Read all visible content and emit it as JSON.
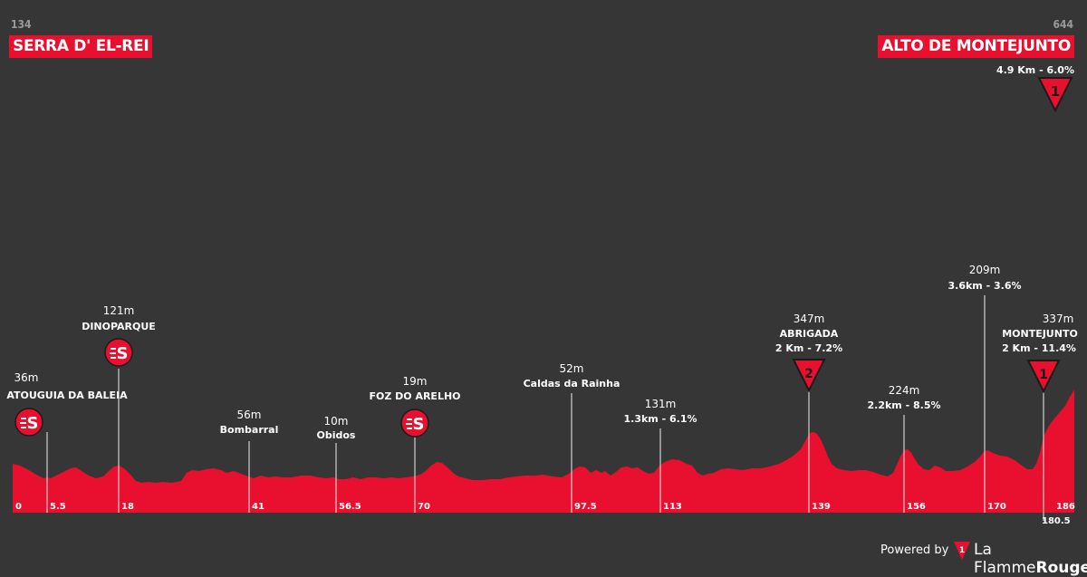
{
  "start": {
    "elevation": "134",
    "name": "SERRA D' EL-REI"
  },
  "finish": {
    "elevation": "644",
    "name": "ALTO DE MONTEJUNTO",
    "climb_info": "4.9 Km - 6.0%",
    "cat": "1"
  },
  "waypoints": [
    {
      "id": "atouguia",
      "elev": "36m",
      "name": "ATOUGUIA DA BALEIA",
      "sub": "",
      "icon": "sprint",
      "bold": true
    },
    {
      "id": "dinoparque",
      "elev": "121m",
      "name": "DINOPARQUE",
      "sub": "",
      "icon": "sprint",
      "bold": true
    },
    {
      "id": "bombarral",
      "elev": "56m",
      "name": "Bombarral",
      "sub": "",
      "icon": "",
      "bold": false
    },
    {
      "id": "obidos",
      "elev": "10m",
      "name": "Obidos",
      "sub": "",
      "icon": "",
      "bold": false
    },
    {
      "id": "foz",
      "elev": "19m",
      "name": "FOZ DO ARELHO",
      "sub": "",
      "icon": "sprint",
      "bold": true
    },
    {
      "id": "caldas",
      "elev": "52m",
      "name": "Caldas da Rainha",
      "sub": "",
      "icon": "",
      "bold": false
    },
    {
      "id": "km113",
      "elev": "131m",
      "name": "",
      "sub": "1.3km - 6.1%",
      "icon": "",
      "bold": false
    },
    {
      "id": "abrigada",
      "elev": "347m",
      "name": "ABRIGADA",
      "sub": "2 Km - 7.2%",
      "icon": "kom2",
      "bold": true
    },
    {
      "id": "km156",
      "elev": "224m",
      "name": "",
      "sub": "2.2km - 8.5%",
      "icon": "",
      "bold": false
    },
    {
      "id": "km170",
      "elev": "209m",
      "name": "",
      "sub": "3.6km - 3.6%",
      "icon": "",
      "bold": false
    },
    {
      "id": "montejunto",
      "elev": "337m",
      "name": "MONTEJUNTO",
      "sub": "2 Km - 11.4%",
      "icon": "kom1",
      "bold": true
    }
  ],
  "km_ticks": [
    "0",
    "5.5",
    "18",
    "41",
    "56.5",
    "70",
    "97.5",
    "113",
    "139",
    "156",
    "170",
    "180.5",
    "186"
  ],
  "kom_labels": {
    "cat1": "1",
    "cat2": "2"
  },
  "footer": {
    "powered_by": "Powered by",
    "brand_a": "La Flamme",
    "brand_b": "Rouge"
  },
  "colors": {
    "profile": "#e8102e",
    "background": "#363636",
    "label_grey": "#9a9a9a"
  }
}
